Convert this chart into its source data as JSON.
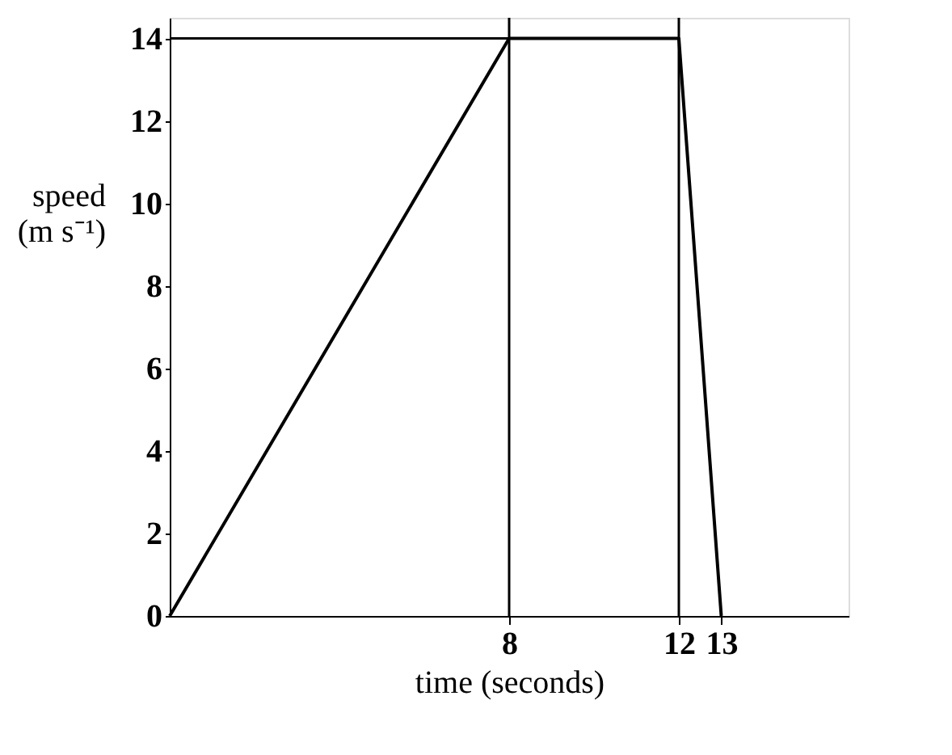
{
  "chart_data": {
    "type": "line",
    "xlabel": "time (seconds)",
    "ylabel": "speed\n(m s⁻¹)",
    "x": [
      0,
      8,
      12,
      13
    ],
    "values": [
      0,
      14,
      14,
      0
    ],
    "color": "#000000",
    "xlim": [
      0,
      16
    ],
    "ylim": [
      0,
      14.5
    ],
    "xticks": [
      8,
      12,
      13
    ],
    "yticks": [
      0,
      2,
      4,
      6,
      8,
      10,
      12,
      14
    ],
    "ref_lines": [
      {
        "axis": "y",
        "value": 14,
        "color": "#000000"
      },
      {
        "axis": "x",
        "value": 8,
        "color": "#000000"
      },
      {
        "axis": "x",
        "value": 12,
        "color": "#000000"
      }
    ],
    "grid": false,
    "marker": "none",
    "line_style": "solid"
  }
}
